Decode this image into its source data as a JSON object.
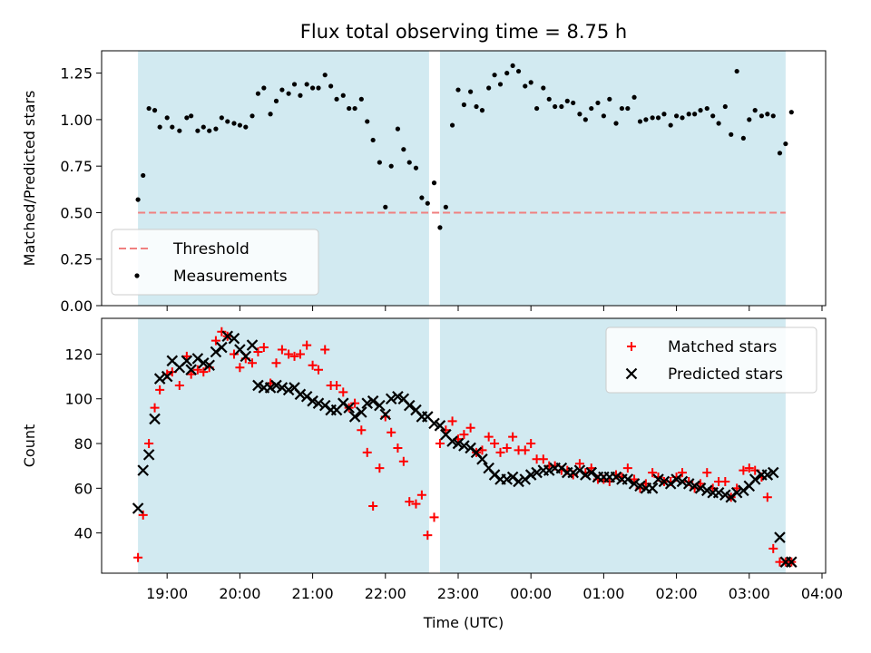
{
  "chart_data": {
    "type": "scatter",
    "title": "Flux total observing time = 8.75 h",
    "xlabel": "Time (UTC)",
    "x_tick_labels": [
      "19:00",
      "20:00",
      "21:00",
      "22:00",
      "23:00",
      "00:00",
      "01:00",
      "02:00",
      "03:00",
      "04:00"
    ],
    "x_tick_hours": [
      19,
      20,
      21,
      22,
      23,
      24,
      25,
      26,
      27,
      28
    ],
    "xlim_hours": [
      18.1,
      28.05
    ],
    "observing_windows_hours": [
      [
        18.6,
        22.6
      ],
      [
        22.75,
        27.5
      ]
    ],
    "window_color": "#add8e6",
    "panels": [
      {
        "ylabel": "Matched/Predicted stars",
        "ylim": [
          0,
          1.37
        ],
        "yticks": [
          0.0,
          0.25,
          0.5,
          0.75,
          1.0,
          1.25
        ],
        "ytick_labels": [
          "0.00",
          "0.25",
          "0.50",
          "0.75",
          "1.00",
          "1.25"
        ],
        "legend_position": "lower-left",
        "threshold": {
          "name": "Threshold",
          "value": 0.5,
          "color": "#f08080",
          "style": "dashed"
        },
        "series": [
          {
            "name": "Measurements",
            "marker": "dot",
            "color": "#000000",
            "x": [
              18.6,
              18.67,
              18.75,
              18.83,
              18.9,
              19.0,
              19.07,
              19.17,
              19.27,
              19.33,
              19.42,
              19.5,
              19.58,
              19.67,
              19.75,
              19.83,
              19.92,
              20.0,
              20.08,
              20.17,
              20.25,
              20.33,
              20.42,
              20.5,
              20.58,
              20.67,
              20.75,
              20.83,
              20.92,
              21.0,
              21.08,
              21.17,
              21.25,
              21.33,
              21.42,
              21.5,
              21.58,
              21.67,
              21.75,
              21.83,
              21.92,
              22.0,
              22.08,
              22.17,
              22.25,
              22.33,
              22.42,
              22.5,
              22.58,
              22.67,
              22.75,
              22.83,
              22.92,
              23.0,
              23.08,
              23.17,
              23.25,
              23.33,
              23.42,
              23.5,
              23.58,
              23.67,
              23.75,
              23.83,
              23.92,
              24.0,
              24.08,
              24.17,
              24.25,
              24.33,
              24.42,
              24.5,
              24.58,
              24.67,
              24.75,
              24.83,
              24.92,
              25.0,
              25.08,
              25.17,
              25.25,
              25.33,
              25.42,
              25.5,
              25.58,
              25.67,
              25.75,
              25.83,
              25.92,
              26.0,
              26.08,
              26.17,
              26.25,
              26.33,
              26.42,
              26.5,
              26.58,
              26.67,
              26.75,
              26.83,
              26.92,
              27.0,
              27.08,
              27.17,
              27.25,
              27.33,
              27.42,
              27.5,
              27.58
            ],
            "y": [
              0.57,
              0.7,
              1.06,
              1.05,
              0.96,
              1.01,
              0.96,
              0.94,
              1.01,
              1.02,
              0.94,
              0.96,
              0.94,
              0.95,
              1.01,
              0.99,
              0.98,
              0.97,
              0.96,
              1.02,
              1.14,
              1.17,
              1.03,
              1.1,
              1.16,
              1.14,
              1.19,
              1.13,
              1.19,
              1.17,
              1.17,
              1.24,
              1.18,
              1.11,
              1.13,
              1.06,
              1.06,
              1.11,
              0.99,
              0.89,
              0.77,
              0.53,
              0.75,
              0.95,
              0.84,
              0.77,
              0.74,
              0.58,
              0.55,
              0.66,
              0.42,
              0.53,
              0.97,
              1.16,
              1.08,
              1.15,
              1.07,
              1.05,
              1.17,
              1.24,
              1.19,
              1.25,
              1.29,
              1.26,
              1.18,
              1.2,
              1.06,
              1.17,
              1.11,
              1.07,
              1.07,
              1.1,
              1.09,
              1.03,
              1.0,
              1.06,
              1.09,
              1.02,
              1.11,
              0.98,
              1.06,
              1.06,
              1.12,
              0.99,
              1.0,
              1.01,
              1.01,
              1.03,
              0.97,
              1.02,
              1.01,
              1.03,
              1.03,
              1.05,
              1.06,
              1.02,
              0.98,
              1.07,
              0.92,
              1.26,
              0.9,
              1.0,
              1.05,
              1.02,
              1.03,
              1.02,
              0.82,
              0.87,
              1.04
            ]
          }
        ]
      },
      {
        "ylabel": "Count",
        "ylim": [
          22,
          136
        ],
        "yticks": [
          40,
          60,
          80,
          100,
          120
        ],
        "ytick_labels": [
          "40",
          "60",
          "80",
          "100",
          "120"
        ],
        "legend_position": "upper-right",
        "series": [
          {
            "name": "Matched stars",
            "marker": "plus",
            "color": "#ff0000",
            "x": [
              18.6,
              18.67,
              18.75,
              18.83,
              18.9,
              19.0,
              19.07,
              19.17,
              19.27,
              19.33,
              19.42,
              19.5,
              19.58,
              19.67,
              19.75,
              19.83,
              19.92,
              20.0,
              20.08,
              20.17,
              20.25,
              20.33,
              20.42,
              20.5,
              20.58,
              20.67,
              20.75,
              20.83,
              20.92,
              21.0,
              21.08,
              21.17,
              21.25,
              21.33,
              21.42,
              21.5,
              21.58,
              21.67,
              21.75,
              21.83,
              21.92,
              22.0,
              22.08,
              22.17,
              22.25,
              22.33,
              22.42,
              22.5,
              22.58,
              22.67,
              22.75,
              22.83,
              22.92,
              23.0,
              23.08,
              23.17,
              23.25,
              23.33,
              23.42,
              23.5,
              23.58,
              23.67,
              23.75,
              23.83,
              23.92,
              24.0,
              24.08,
              24.17,
              24.25,
              24.33,
              24.42,
              24.5,
              24.58,
              24.67,
              24.75,
              24.83,
              24.92,
              25.0,
              25.08,
              25.17,
              25.25,
              25.33,
              25.42,
              25.5,
              25.58,
              25.67,
              25.75,
              25.83,
              25.92,
              26.0,
              26.08,
              26.17,
              26.25,
              26.33,
              26.42,
              26.5,
              26.58,
              26.67,
              26.75,
              26.83,
              26.92,
              27.0,
              27.08,
              27.17,
              27.25,
              27.33,
              27.42,
              27.5,
              27.58
            ],
            "y": [
              29,
              48,
              80,
              96,
              104,
              111,
              112,
              106,
              119,
              111,
              113,
              112,
              114,
              126,
              130,
              128,
              120,
              114,
              118,
              116,
              121,
              123,
              107,
              116,
              122,
              120,
              119,
              120,
              124,
              115,
              113,
              122,
              106,
              106,
              103,
              96,
              98,
              86,
              76,
              52,
              69,
              92,
              85,
              78,
              72,
              54,
              53,
              57,
              39,
              47,
              80,
              86,
              90,
              82,
              84,
              87,
              76,
              77,
              83,
              80,
              76,
              78,
              83,
              77,
              77,
              80,
              73,
              73,
              70,
              70,
              68,
              68,
              66,
              71,
              67,
              69,
              64,
              64,
              63,
              66,
              65,
              69,
              64,
              60,
              62,
              67,
              65,
              63,
              63,
              65,
              67,
              63,
              60,
              62,
              67,
              60,
              63,
              63,
              56,
              60,
              68,
              69,
              68,
              65,
              56,
              33,
              27,
              27,
              27
            ]
          },
          {
            "name": "Predicted stars",
            "marker": "x",
            "color": "#000000",
            "x": [
              18.6,
              18.67,
              18.75,
              18.83,
              18.9,
              19.0,
              19.07,
              19.17,
              19.27,
              19.33,
              19.42,
              19.5,
              19.58,
              19.67,
              19.75,
              19.83,
              19.92,
              20.0,
              20.08,
              20.17,
              20.25,
              20.33,
              20.42,
              20.5,
              20.58,
              20.67,
              20.75,
              20.83,
              20.92,
              21.0,
              21.08,
              21.17,
              21.25,
              21.33,
              21.42,
              21.5,
              21.58,
              21.67,
              21.75,
              21.83,
              21.92,
              22.0,
              22.08,
              22.17,
              22.25,
              22.33,
              22.42,
              22.5,
              22.58,
              22.67,
              22.75,
              22.83,
              22.92,
              23.0,
              23.08,
              23.17,
              23.25,
              23.33,
              23.42,
              23.5,
              23.58,
              23.67,
              23.75,
              23.83,
              23.92,
              24.0,
              24.08,
              24.17,
              24.25,
              24.33,
              24.42,
              24.5,
              24.58,
              24.67,
              24.75,
              24.83,
              24.92,
              25.0,
              25.08,
              25.17,
              25.25,
              25.33,
              25.42,
              25.5,
              25.58,
              25.67,
              25.75,
              25.83,
              25.92,
              26.0,
              26.08,
              26.17,
              26.25,
              26.33,
              26.42,
              26.5,
              26.58,
              26.67,
              26.75,
              26.83,
              26.92,
              27.0,
              27.08,
              27.17,
              27.25,
              27.33,
              27.42,
              27.5,
              27.58
            ],
            "y": [
              51,
              68,
              75,
              91,
              109,
              110,
              117,
              114,
              117,
              113,
              118,
              116,
              115,
              121,
              123,
              128,
              127,
              122,
              119,
              124,
              106,
              105,
              105,
              106,
              105,
              104,
              105,
              102,
              101,
              99,
              98,
              97,
              95,
              95,
              98,
              96,
              92,
              94,
              98,
              99,
              97,
              93,
              100,
              101,
              100,
              97,
              95,
              92,
              92,
              89,
              88,
              84,
              81,
              80,
              79,
              78,
              76,
              73,
              69,
              66,
              64,
              64,
              65,
              63,
              64,
              66,
              67,
              68,
              68,
              69,
              69,
              67,
              67,
              68,
              66,
              67,
              65,
              65,
              65,
              65,
              64,
              64,
              62,
              61,
              60,
              60,
              64,
              63,
              62,
              64,
              63,
              62,
              61,
              60,
              59,
              58,
              58,
              57,
              56,
              58,
              59,
              61,
              64,
              66,
              66,
              67,
              38,
              27,
              27
            ]
          }
        ]
      }
    ]
  }
}
